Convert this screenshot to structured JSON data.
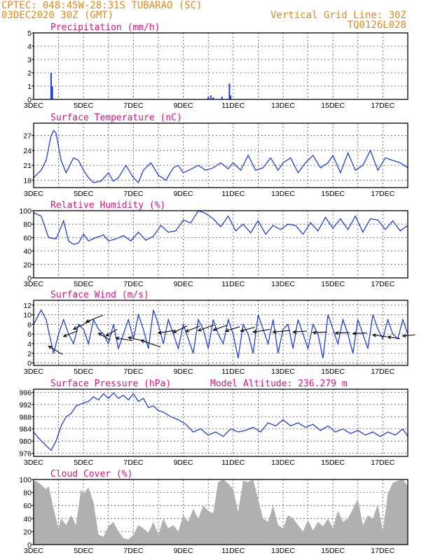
{
  "header": {
    "line1_left": "CPTEC:   048:45W-28:31S  TUBARAO (SC)",
    "line2_left": "03DEC2020 30Z (GMT)",
    "line2_right": "Vertical Grid Line: 30Z",
    "line3_right": "TQ0126L028"
  },
  "x_ticks": [
    "3DEC",
    "5DEC",
    "7DEC",
    "9DEC",
    "11DEC",
    "13DEC",
    "15DEC",
    "17DEC"
  ],
  "colors": {
    "curve": "#1f3fe0",
    "bar": "#1f3fe0",
    "cloud": "#b0b0b0",
    "title": "#e0107a",
    "header": "#e08a1e"
  },
  "chart_data": [
    {
      "type": "bar",
      "title": "Precipitation (mm/h)",
      "ylim": [
        0,
        5
      ],
      "yticks": [
        0,
        1,
        2,
        3,
        4,
        5
      ],
      "x_unit": "days since 3DEC",
      "xlim": [
        0,
        15
      ],
      "bars": [
        [
          0.7,
          2.0
        ],
        [
          0.75,
          1.0
        ],
        [
          7.0,
          0.2
        ],
        [
          7.1,
          0.3
        ],
        [
          7.2,
          0.15
        ],
        [
          7.55,
          0.2
        ],
        [
          7.85,
          1.2
        ],
        [
          7.9,
          0.3
        ]
      ]
    },
    {
      "type": "line",
      "title": "Surface Temperature (nC)",
      "ylim": [
        16.5,
        29.5
      ],
      "yticks": [
        18,
        21,
        24,
        27
      ],
      "xlim": [
        0,
        15
      ],
      "x": [
        0,
        0.3,
        0.5,
        0.7,
        0.8,
        0.9,
        1.1,
        1.3,
        1.4,
        1.6,
        1.8,
        2.0,
        2.2,
        2.4,
        2.7,
        3.0,
        3.2,
        3.4,
        3.7,
        4.0,
        4.2,
        4.4,
        4.7,
        5.0,
        5.3,
        5.6,
        5.8,
        6.0,
        6.3,
        6.6,
        6.9,
        7.2,
        7.5,
        7.8,
        8.0,
        8.3,
        8.6,
        8.9,
        9.2,
        9.5,
        9.8,
        10.0,
        10.3,
        10.6,
        10.9,
        11.2,
        11.5,
        11.8,
        12.0,
        12.3,
        12.6,
        12.9,
        13.2,
        13.5,
        13.8,
        14.1,
        14.4,
        14.7,
        15.0
      ],
      "values": [
        18.5,
        20,
        22,
        27,
        28,
        27.5,
        22,
        19.5,
        20.5,
        22.5,
        22,
        20,
        18.5,
        17.5,
        17.8,
        19.5,
        17.8,
        18.5,
        21,
        18.5,
        17.5,
        20,
        21.5,
        19,
        18,
        20.5,
        21,
        19.5,
        20.2,
        21,
        20,
        20.5,
        21.5,
        20.3,
        21.5,
        20,
        23,
        20,
        20.5,
        22.5,
        20,
        21.5,
        22.5,
        19.5,
        21.5,
        23,
        20.5,
        21.5,
        23,
        19.5,
        23.5,
        20,
        21,
        24,
        20,
        22.5,
        22,
        21.5,
        20.5
      ],
      "xlabel": "",
      "ylabel": ""
    },
    {
      "type": "line",
      "title": "Relative Humidity (%)",
      "ylim": [
        0,
        100
      ],
      "yticks": [
        0,
        20,
        40,
        60,
        80,
        100
      ],
      "xlim": [
        0,
        15
      ],
      "x": [
        0,
        0.3,
        0.6,
        0.9,
        1.2,
        1.4,
        1.6,
        1.8,
        2.0,
        2.2,
        2.5,
        2.8,
        3.0,
        3.3,
        3.6,
        3.9,
        4.2,
        4.5,
        4.8,
        5.1,
        5.4,
        5.7,
        6.0,
        6.3,
        6.6,
        6.9,
        7.2,
        7.5,
        7.8,
        8.1,
        8.4,
        8.7,
        9.0,
        9.3,
        9.6,
        9.9,
        10.2,
        10.5,
        10.8,
        11.1,
        11.4,
        11.7,
        12.0,
        12.3,
        12.6,
        12.9,
        13.2,
        13.5,
        13.8,
        14.1,
        14.4,
        14.7,
        15.0
      ],
      "values": [
        97,
        92,
        60,
        58,
        85,
        55,
        50,
        52,
        65,
        55,
        60,
        64,
        55,
        58,
        63,
        55,
        68,
        56,
        62,
        78,
        68,
        70,
        86,
        82,
        100,
        96,
        88,
        76,
        92,
        70,
        80,
        67,
        85,
        65,
        78,
        72,
        80,
        78,
        65,
        82,
        70,
        90,
        74,
        88,
        72,
        92,
        68,
        88,
        86,
        72,
        85,
        70,
        78
      ],
      "xlabel": "",
      "ylabel": ""
    },
    {
      "type": "line",
      "title": "Surface Wind (m/s)",
      "ylim": [
        -0.5,
        13
      ],
      "yticks": [
        0,
        2,
        4,
        6,
        8,
        10,
        12
      ],
      "xlim": [
        0,
        15
      ],
      "x": [
        0,
        0.3,
        0.5,
        0.8,
        1.0,
        1.2,
        1.4,
        1.6,
        1.8,
        2.0,
        2.2,
        2.4,
        2.6,
        2.8,
        3.0,
        3.2,
        3.4,
        3.6,
        3.8,
        4.0,
        4.2,
        4.4,
        4.6,
        4.8,
        5.0,
        5.2,
        5.4,
        5.6,
        5.8,
        6.0,
        6.2,
        6.4,
        6.6,
        6.8,
        7.0,
        7.2,
        7.4,
        7.6,
        7.8,
        8.0,
        8.2,
        8.4,
        8.6,
        8.8,
        9.0,
        9.2,
        9.4,
        9.6,
        9.8,
        10.0,
        10.2,
        10.4,
        10.6,
        10.8,
        11.0,
        11.2,
        11.4,
        11.6,
        11.8,
        12.0,
        12.2,
        12.4,
        12.6,
        12.8,
        13.0,
        13.2,
        13.4,
        13.6,
        13.8,
        14.0,
        14.2,
        14.4,
        14.6,
        14.8,
        15.0
      ],
      "values": [
        8,
        11,
        9,
        2,
        6,
        9,
        6,
        4,
        8,
        7,
        4,
        9,
        7,
        6,
        4,
        8,
        3,
        6,
        9,
        5,
        10,
        7,
        3,
        11,
        8,
        4,
        9,
        6,
        3,
        8,
        5,
        2,
        9,
        7,
        3,
        9,
        6,
        4,
        9,
        6,
        1,
        8,
        6,
        2,
        10,
        7,
        4,
        9,
        2,
        7,
        8,
        3,
        9,
        6,
        3,
        8,
        6,
        1,
        10,
        7,
        4,
        9,
        6,
        2,
        9,
        6,
        3,
        10,
        7,
        5,
        9,
        6,
        5,
        9,
        6
      ],
      "arrows": [
        [
          0.6,
          3.5,
          2.5,
          -1.5
        ],
        [
          1.2,
          5.5,
          2.5,
          1.0
        ],
        [
          1.6,
          7,
          3,
          1.5
        ],
        [
          2.1,
          8.5,
          3,
          1.2
        ],
        [
          2.6,
          6.2,
          2,
          -1.2
        ],
        [
          2.9,
          5.6,
          2,
          1.2
        ],
        [
          3.3,
          5.2,
          3,
          -0.5
        ],
        [
          3.8,
          5.3,
          3,
          -0.7
        ],
        [
          4.3,
          4.7,
          3.5,
          -1.2
        ],
        [
          5.0,
          6.2,
          3,
          0.5
        ],
        [
          5.6,
          6.3,
          2.5,
          1.2
        ],
        [
          6.1,
          6.5,
          2.5,
          1.0
        ],
        [
          6.6,
          6.7,
          2.8,
          1.0
        ],
        [
          7.2,
          6.8,
          2.5,
          0.9
        ],
        [
          7.7,
          6.6,
          2.5,
          0.8
        ],
        [
          8.3,
          6.6,
          2.5,
          0.7
        ],
        [
          8.8,
          6.4,
          3,
          0.5
        ],
        [
          9.6,
          6.4,
          3,
          0.3
        ],
        [
          10.4,
          6.4,
          2.5,
          0.2
        ],
        [
          11.2,
          6.3,
          2.5,
          0.1
        ],
        [
          12.1,
          6.2,
          2.5,
          0.1
        ],
        [
          12.8,
          6.1,
          2.5,
          0.1
        ],
        [
          13.6,
          5.8,
          2.5,
          -0.3
        ],
        [
          14.2,
          5.4,
          2.2,
          -0.3
        ],
        [
          14.8,
          5.6,
          2.2,
          0.2
        ]
      ],
      "xlabel": "",
      "ylabel": ""
    },
    {
      "type": "line",
      "title": "Surface Pressure (hPa)",
      "subtitle": "Model Altitude: 236.279 m",
      "ylim": [
        975,
        997
      ],
      "yticks": [
        976,
        980,
        984,
        988,
        992,
        996
      ],
      "xlim": [
        0,
        15
      ],
      "x": [
        0,
        0.2,
        0.5,
        0.7,
        0.9,
        1.1,
        1.3,
        1.5,
        1.7,
        2.0,
        2.2,
        2.4,
        2.6,
        2.8,
        3.0,
        3.2,
        3.4,
        3.6,
        3.8,
        4.0,
        4.2,
        4.4,
        4.6,
        4.8,
        5.0,
        5.2,
        5.5,
        5.8,
        6.1,
        6.4,
        6.7,
        7.0,
        7.3,
        7.6,
        7.9,
        8.2,
        8.5,
        8.8,
        9.1,
        9.4,
        9.7,
        10.0,
        10.3,
        10.6,
        10.9,
        11.2,
        11.5,
        11.8,
        12.1,
        12.4,
        12.7,
        13.0,
        13.3,
        13.6,
        13.9,
        14.2,
        14.5,
        14.8,
        15.0
      ],
      "values": [
        983,
        981,
        978.5,
        977,
        980,
        985,
        988,
        989,
        991.5,
        992.5,
        993,
        994.5,
        993.5,
        995.5,
        994,
        995.8,
        994,
        995,
        993.5,
        995.5,
        993,
        994,
        991,
        991.5,
        990,
        989.5,
        988,
        987,
        985.5,
        983,
        984,
        982,
        983,
        981.5,
        984,
        983,
        983.5,
        984.5,
        983,
        986,
        985,
        987,
        985,
        986,
        984.5,
        985.5,
        983.5,
        985,
        983,
        984,
        982.5,
        983.5,
        982,
        983,
        981.5,
        983,
        982,
        984,
        981.5
      ],
      "xlabel": "",
      "ylabel": ""
    },
    {
      "type": "area",
      "title": "Cloud Cover (%)",
      "ylim": [
        0,
        100
      ],
      "yticks": [
        0,
        20,
        40,
        60,
        80,
        100
      ],
      "xlim": [
        0,
        15
      ],
      "x": [
        0,
        0.1,
        0.3,
        0.5,
        0.6,
        0.8,
        1.0,
        1.1,
        1.3,
        1.5,
        1.7,
        1.9,
        2.0,
        2.2,
        2.4,
        2.6,
        2.8,
        3.0,
        3.2,
        3.4,
        3.6,
        3.8,
        4.0,
        4.2,
        4.4,
        4.6,
        4.8,
        5.0,
        5.2,
        5.4,
        5.6,
        5.8,
        6.0,
        6.2,
        6.4,
        6.6,
        6.8,
        7.0,
        7.2,
        7.4,
        7.6,
        7.8,
        8.0,
        8.2,
        8.4,
        8.6,
        8.8,
        9.0,
        9.2,
        9.4,
        9.6,
        9.8,
        10.0,
        10.2,
        10.4,
        10.6,
        10.8,
        11.0,
        11.2,
        11.4,
        11.6,
        11.8,
        12.0,
        12.2,
        12.4,
        12.6,
        12.8,
        13.0,
        13.2,
        13.4,
        13.6,
        13.8,
        14.0,
        14.2,
        14.4,
        14.6,
        14.8,
        15.0
      ],
      "values": [
        95,
        98,
        92,
        85,
        90,
        55,
        25,
        40,
        30,
        45,
        30,
        85,
        78,
        88,
        65,
        15,
        12,
        28,
        35,
        20,
        10,
        8,
        15,
        30,
        25,
        18,
        35,
        15,
        40,
        25,
        30,
        20,
        45,
        35,
        55,
        40,
        60,
        52,
        48,
        96,
        100,
        94,
        85,
        50,
        98,
        96,
        100,
        70,
        40,
        35,
        60,
        30,
        25,
        45,
        40,
        30,
        20,
        38,
        22,
        35,
        28,
        40,
        25,
        52,
        35,
        40,
        55,
        70,
        30,
        45,
        40,
        62,
        20,
        78,
        95,
        98,
        100,
        90
      ],
      "xlabel": "",
      "ylabel": ""
    }
  ]
}
